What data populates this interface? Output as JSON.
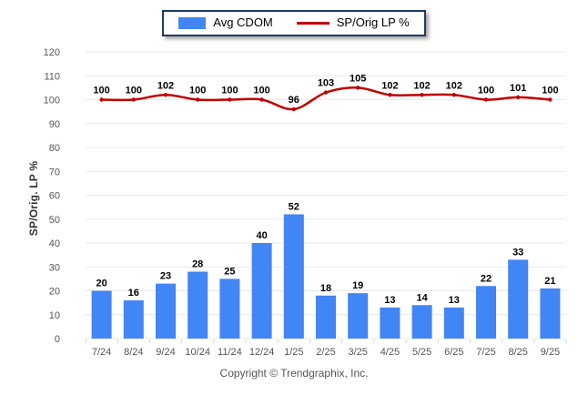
{
  "legend": {
    "items": [
      {
        "label": "Avg CDOM",
        "type": "bar"
      },
      {
        "label": "SP/Orig LP %",
        "type": "line"
      }
    ]
  },
  "footer": {
    "text": "Copyright © Trendgraphix, Inc."
  },
  "colors": {
    "bar": "#4285f4",
    "line": "#c00000",
    "legend_border": "#1f3864",
    "grid": "#e9e9e9",
    "axis_tick": "#d6d6d6",
    "tick_text": "#555555",
    "value_text": "#000000"
  },
  "chart_data": {
    "type": "combo",
    "categories": [
      "7/24",
      "8/24",
      "9/24",
      "10/24",
      "11/24",
      "12/24",
      "1/25",
      "2/25",
      "3/25",
      "4/25",
      "5/25",
      "6/25",
      "7/25",
      "8/25",
      "9/25"
    ],
    "series": [
      {
        "name": "Avg CDOM",
        "type": "bar",
        "values": [
          20,
          16,
          23,
          28,
          25,
          40,
          52,
          18,
          19,
          13,
          14,
          13,
          22,
          33,
          21
        ]
      },
      {
        "name": "SP/Orig LP %",
        "type": "line",
        "values": [
          100,
          100,
          102,
          100,
          100,
          100,
          96,
          103,
          105,
          102,
          102,
          102,
          100,
          101,
          100
        ]
      }
    ],
    "title": "",
    "xlabel": "",
    "ylabel": "SP/Orig. LP %",
    "ylim": [
      0,
      120
    ],
    "ytick_step": 10,
    "grid": "horizontal",
    "legend_position": "top",
    "data_labels": true
  }
}
